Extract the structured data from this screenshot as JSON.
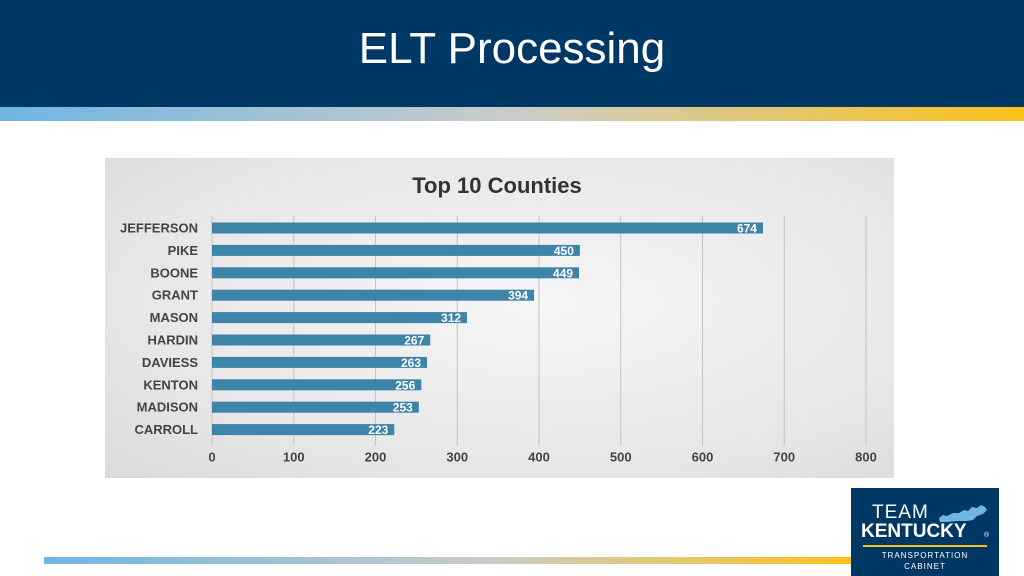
{
  "slide": {
    "title": "ELT Processing"
  },
  "logo": {
    "line1": "TEAM",
    "line2": "KENTUCKY",
    "reg": "®",
    "line3": "TRANSPORTATION",
    "line4": "CABINET",
    "map_icon": "kentucky-map-icon"
  },
  "colors": {
    "header": "#003865",
    "bar": "#3d84a8",
    "accent": "#fcc21b",
    "light_blue": "#6fb6e3"
  },
  "chart_data": {
    "type": "bar",
    "orientation": "horizontal",
    "title": "Top 10 Counties",
    "categories": [
      "JEFFERSON",
      "PIKE",
      "BOONE",
      "GRANT",
      "MASON",
      "HARDIN",
      "DAVIESS",
      "KENTON",
      "MADISON",
      "CARROLL"
    ],
    "values": [
      674,
      450,
      449,
      394,
      312,
      267,
      263,
      256,
      253,
      223
    ],
    "xlim": [
      0,
      800
    ],
    "xticks": [
      0,
      100,
      200,
      300,
      400,
      500,
      600,
      700,
      800
    ],
    "grid": true,
    "legend": "none"
  }
}
